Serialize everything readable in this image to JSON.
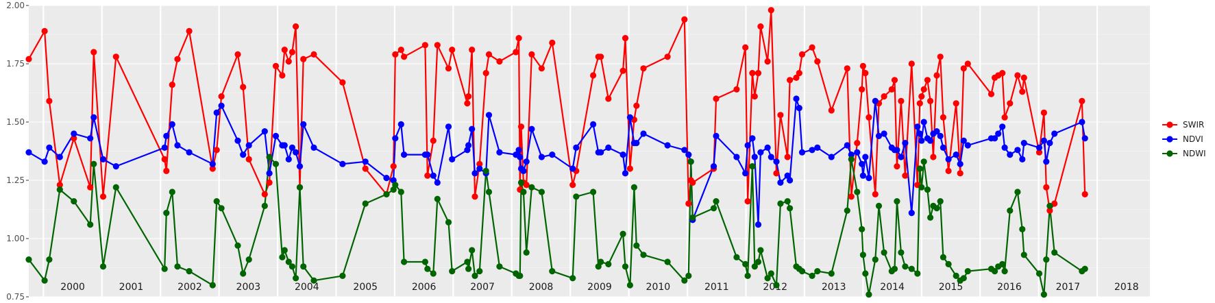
{
  "chart_data": {
    "type": "line",
    "ylim": [
      0.75,
      2.0
    ],
    "y_ticks": [
      "0.75",
      "1.00",
      "1.25",
      "1.50",
      "1.75",
      "2.00"
    ],
    "x_range": [
      1999.75,
      2018.9
    ],
    "year_labels": [
      "2000",
      "2001",
      "2002",
      "2003",
      "2004",
      "2005",
      "2006",
      "2007",
      "2008",
      "2009",
      "2010",
      "2011",
      "2012",
      "2013",
      "2014",
      "2015",
      "2016",
      "2017",
      "2018"
    ],
    "grid": true,
    "legend_position": "right",
    "series": [
      {
        "name": "SWIR",
        "color": "#ff0000",
        "x": [
          1999.75,
          2000.02,
          2000.1,
          2000.28,
          2000.52,
          2000.8,
          2000.86,
          2001.02,
          2001.24,
          2002.07,
          2002.1,
          2002.2,
          2002.29,
          2002.49,
          2002.89,
          2002.96,
          2003.04,
          2003.32,
          2003.41,
          2003.51,
          2003.78,
          2003.86,
          2003.97,
          2004.08,
          2004.12,
          2004.19,
          2004.25,
          2004.31,
          2004.38,
          2004.44,
          2004.62,
          2005.11,
          2005.5,
          2005.86,
          2005.98,
          2006.01,
          2006.11,
          2006.16,
          2006.52,
          2006.56,
          2006.66,
          2006.73,
          2006.92,
          2006.98,
          2007.24,
          2007.26,
          2007.32,
          2007.37,
          2007.45,
          2007.56,
          2007.61,
          2007.79,
          2008.07,
          2008.12,
          2008.14,
          2008.16,
          2008.2,
          2008.25,
          2008.34,
          2008.51,
          2008.69,
          2009.04,
          2009.1,
          2009.39,
          2009.48,
          2009.52,
          2009.65,
          2009.9,
          2009.94,
          2010.02,
          2010.09,
          2010.13,
          2010.25,
          2010.66,
          2010.95,
          2011.02,
          2011.06,
          2011.09,
          2011.45,
          2011.49,
          2011.84,
          2011.99,
          2012.03,
          2012.11,
          2012.15,
          2012.21,
          2012.25,
          2012.37,
          2012.43,
          2012.52,
          2012.59,
          2012.71,
          2012.75,
          2012.86,
          2012.91,
          2012.96,
          2013.13,
          2013.22,
          2013.46,
          2013.73,
          2013.8,
          2013.9,
          2013.98,
          2014.0,
          2014.04,
          2014.1,
          2014.21,
          2014.27,
          2014.36,
          2014.49,
          2014.54,
          2014.58,
          2014.65,
          2014.72,
          2014.83,
          2014.93,
          2014.97,
          2015.0,
          2015.04,
          2015.1,
          2015.15,
          2015.2,
          2015.26,
          2015.32,
          2015.37,
          2015.46,
          2015.59,
          2015.66,
          2015.72,
          2015.79,
          2016.19,
          2016.25,
          2016.31,
          2016.38,
          2016.42,
          2016.51,
          2016.64,
          2016.72,
          2016.75,
          2017.01,
          2017.09,
          2017.13,
          2017.19,
          2017.27,
          2017.74,
          2017.79
        ],
        "values": [
          1.77,
          1.89,
          1.59,
          1.23,
          1.43,
          1.22,
          1.8,
          1.18,
          1.78,
          1.34,
          1.29,
          1.66,
          1.77,
          1.89,
          1.3,
          1.38,
          1.61,
          1.79,
          1.65,
          1.34,
          1.19,
          1.24,
          1.74,
          1.7,
          1.81,
          1.76,
          1.8,
          1.91,
          1.22,
          1.77,
          1.79,
          1.67,
          1.3,
          1.19,
          1.31,
          1.79,
          1.81,
          1.78,
          1.83,
          1.27,
          1.42,
          1.83,
          1.73,
          1.81,
          1.58,
          1.61,
          1.81,
          1.18,
          1.32,
          1.71,
          1.79,
          1.76,
          1.8,
          1.86,
          1.21,
          1.48,
          1.24,
          1.23,
          1.79,
          1.73,
          1.84,
          1.23,
          1.29,
          1.7,
          1.78,
          1.78,
          1.6,
          1.72,
          1.86,
          1.3,
          1.51,
          1.57,
          1.73,
          1.78,
          1.94,
          1.15,
          1.25,
          1.24,
          1.3,
          1.6,
          1.64,
          1.82,
          1.16,
          1.71,
          1.61,
          1.71,
          1.91,
          1.76,
          1.98,
          1.28,
          1.53,
          1.35,
          1.68,
          1.69,
          1.71,
          1.79,
          1.82,
          1.76,
          1.55,
          1.73,
          1.18,
          1.41,
          1.64,
          1.74,
          1.71,
          1.52,
          1.19,
          1.58,
          1.61,
          1.64,
          1.68,
          1.31,
          1.59,
          1.27,
          1.75,
          1.23,
          1.58,
          1.61,
          1.64,
          1.68,
          1.59,
          1.35,
          1.7,
          1.78,
          1.52,
          1.29,
          1.58,
          1.28,
          1.73,
          1.75,
          1.62,
          1.69,
          1.7,
          1.71,
          1.52,
          1.58,
          1.7,
          1.63,
          1.69,
          1.37,
          1.54,
          1.22,
          1.12,
          1.15,
          1.59,
          1.19
        ],
        "note": ""
      },
      {
        "name": "NDVI",
        "color": "#0000ff",
        "x": [
          1999.75,
          2000.02,
          2000.1,
          2000.28,
          2000.52,
          2000.8,
          2000.86,
          2001.02,
          2001.24,
          2002.07,
          2002.1,
          2002.2,
          2002.29,
          2002.49,
          2002.89,
          2002.96,
          2003.04,
          2003.32,
          2003.41,
          2003.51,
          2003.78,
          2003.86,
          2003.97,
          2004.08,
          2004.12,
          2004.19,
          2004.25,
          2004.31,
          2004.38,
          2004.44,
          2004.62,
          2005.11,
          2005.5,
          2005.86,
          2005.98,
          2006.01,
          2006.11,
          2006.16,
          2006.52,
          2006.56,
          2006.66,
          2006.73,
          2006.92,
          2006.98,
          2007.24,
          2007.26,
          2007.32,
          2007.37,
          2007.45,
          2007.56,
          2007.61,
          2007.79,
          2008.07,
          2008.12,
          2008.14,
          2008.16,
          2008.2,
          2008.25,
          2008.34,
          2008.51,
          2008.69,
          2009.04,
          2009.1,
          2009.39,
          2009.48,
          2009.52,
          2009.65,
          2009.9,
          2009.94,
          2010.02,
          2010.09,
          2010.13,
          2010.25,
          2010.66,
          2010.95,
          2011.02,
          2011.06,
          2011.09,
          2011.45,
          2011.49,
          2011.84,
          2011.99,
          2012.03,
          2012.11,
          2012.15,
          2012.21,
          2012.25,
          2012.37,
          2012.43,
          2012.52,
          2012.59,
          2012.71,
          2012.75,
          2012.86,
          2012.91,
          2012.96,
          2013.13,
          2013.22,
          2013.46,
          2013.73,
          2013.8,
          2013.9,
          2013.98,
          2014.0,
          2014.04,
          2014.1,
          2014.21,
          2014.27,
          2014.36,
          2014.49,
          2014.54,
          2014.58,
          2014.65,
          2014.72,
          2014.83,
          2014.93,
          2014.97,
          2015.0,
          2015.04,
          2015.1,
          2015.15,
          2015.2,
          2015.26,
          2015.32,
          2015.37,
          2015.46,
          2015.59,
          2015.66,
          2015.72,
          2015.79,
          2016.19,
          2016.25,
          2016.31,
          2016.38,
          2016.42,
          2016.51,
          2016.64,
          2016.72,
          2016.75,
          2017.01,
          2017.09,
          2017.13,
          2017.19,
          2017.27,
          2017.74,
          2017.79
        ],
        "values": [
          1.37,
          1.33,
          1.39,
          1.35,
          1.45,
          1.43,
          1.52,
          1.34,
          1.31,
          1.39,
          1.44,
          1.49,
          1.4,
          1.37,
          1.32,
          1.54,
          1.57,
          1.42,
          1.36,
          1.4,
          1.46,
          1.28,
          1.44,
          1.4,
          1.4,
          1.34,
          1.39,
          1.37,
          1.31,
          1.49,
          1.39,
          1.32,
          1.33,
          1.26,
          1.25,
          1.43,
          1.49,
          1.36,
          1.36,
          1.36,
          1.27,
          1.24,
          1.48,
          1.34,
          1.38,
          1.4,
          1.47,
          1.28,
          1.3,
          1.28,
          1.53,
          1.37,
          1.36,
          1.38,
          1.35,
          1.3,
          1.29,
          1.33,
          1.47,
          1.35,
          1.36,
          1.3,
          1.39,
          1.49,
          1.37,
          1.37,
          1.39,
          1.36,
          1.28,
          1.52,
          1.41,
          1.41,
          1.45,
          1.4,
          1.38,
          1.36,
          1.33,
          1.08,
          1.31,
          1.44,
          1.35,
          1.28,
          1.4,
          1.43,
          1.35,
          1.06,
          1.37,
          1.39,
          1.35,
          1.33,
          1.24,
          1.27,
          1.25,
          1.6,
          1.56,
          1.37,
          1.38,
          1.39,
          1.35,
          1.4,
          1.36,
          1.37,
          1.32,
          1.27,
          1.35,
          1.26,
          1.59,
          1.44,
          1.45,
          1.39,
          1.38,
          1.38,
          1.35,
          1.41,
          1.11,
          1.48,
          1.45,
          1.42,
          1.5,
          1.43,
          1.42,
          1.45,
          1.46,
          1.44,
          1.39,
          1.34,
          1.36,
          1.32,
          1.42,
          1.4,
          1.43,
          1.43,
          1.45,
          1.48,
          1.39,
          1.36,
          1.38,
          1.34,
          1.41,
          1.39,
          1.42,
          1.33,
          1.41,
          1.45,
          1.5,
          1.43
        ],
        "note": ""
      },
      {
        "name": "NDWI",
        "color": "#006400",
        "x": [
          1999.75,
          2000.02,
          2000.1,
          2000.28,
          2000.52,
          2000.8,
          2000.86,
          2001.02,
          2001.24,
          2002.07,
          2002.1,
          2002.2,
          2002.29,
          2002.49,
          2002.89,
          2002.96,
          2003.04,
          2003.32,
          2003.41,
          2003.51,
          2003.78,
          2003.86,
          2003.97,
          2004.08,
          2004.12,
          2004.19,
          2004.25,
          2004.31,
          2004.38,
          2004.44,
          2004.62,
          2005.11,
          2005.5,
          2005.86,
          2005.98,
          2006.01,
          2006.11,
          2006.16,
          2006.52,
          2006.56,
          2006.66,
          2006.73,
          2006.92,
          2006.98,
          2007.24,
          2007.26,
          2007.32,
          2007.37,
          2007.45,
          2007.56,
          2007.61,
          2007.79,
          2008.07,
          2008.12,
          2008.14,
          2008.16,
          2008.2,
          2008.25,
          2008.34,
          2008.51,
          2008.69,
          2009.04,
          2009.1,
          2009.39,
          2009.48,
          2009.52,
          2009.65,
          2009.9,
          2009.94,
          2010.02,
          2010.09,
          2010.13,
          2010.25,
          2010.66,
          2010.95,
          2011.02,
          2011.06,
          2011.09,
          2011.45,
          2011.49,
          2011.84,
          2011.99,
          2012.03,
          2012.11,
          2012.15,
          2012.21,
          2012.25,
          2012.37,
          2012.43,
          2012.52,
          2012.59,
          2012.71,
          2012.75,
          2012.86,
          2012.91,
          2012.96,
          2013.13,
          2013.22,
          2013.46,
          2013.73,
          2013.8,
          2013.9,
          2013.98,
          2014.0,
          2014.04,
          2014.1,
          2014.21,
          2014.27,
          2014.36,
          2014.49,
          2014.54,
          2014.58,
          2014.65,
          2014.72,
          2014.83,
          2014.93,
          2014.97,
          2015.0,
          2015.04,
          2015.1,
          2015.15,
          2015.2,
          2015.26,
          2015.32,
          2015.37,
          2015.46,
          2015.59,
          2015.66,
          2015.72,
          2015.79,
          2016.19,
          2016.25,
          2016.31,
          2016.38,
          2016.42,
          2016.51,
          2016.64,
          2016.72,
          2016.75,
          2017.01,
          2017.09,
          2017.13,
          2017.19,
          2017.27,
          2017.74,
          2017.79
        ],
        "values": [
          0.91,
          0.82,
          0.91,
          1.21,
          1.16,
          1.06,
          1.32,
          0.88,
          1.22,
          0.87,
          1.11,
          1.2,
          0.88,
          0.86,
          0.8,
          1.16,
          1.13,
          0.97,
          0.85,
          0.91,
          1.14,
          1.35,
          1.32,
          0.92,
          0.95,
          0.9,
          0.88,
          0.83,
          1.22,
          0.88,
          0.82,
          0.84,
          1.15,
          1.19,
          1.21,
          1.23,
          1.2,
          0.9,
          0.9,
          0.87,
          0.85,
          1.17,
          1.07,
          0.86,
          0.9,
          0.87,
          0.95,
          0.84,
          0.86,
          1.29,
          1.2,
          0.88,
          0.85,
          0.84,
          0.84,
          1.24,
          1.2,
          0.94,
          1.22,
          1.2,
          0.86,
          0.83,
          1.18,
          1.2,
          0.88,
          0.9,
          0.89,
          1.02,
          0.88,
          0.8,
          1.22,
          0.97,
          0.93,
          0.9,
          0.82,
          0.84,
          1.33,
          1.09,
          1.13,
          1.16,
          0.92,
          0.89,
          0.84,
          1.31,
          0.88,
          0.9,
          0.95,
          0.83,
          0.85,
          0.8,
          1.15,
          1.16,
          1.13,
          0.88,
          0.87,
          0.86,
          0.84,
          0.86,
          0.85,
          1.12,
          1.34,
          1.2,
          1.04,
          0.93,
          0.85,
          0.76,
          0.91,
          1.14,
          0.94,
          0.86,
          0.87,
          1.16,
          0.94,
          0.88,
          0.87,
          0.85,
          1.3,
          1.22,
          1.33,
          1.21,
          1.09,
          1.14,
          1.13,
          1.16,
          0.92,
          0.89,
          0.84,
          0.82,
          0.83,
          0.86,
          0.87,
          0.86,
          0.88,
          0.89,
          0.86,
          1.12,
          1.2,
          1.04,
          0.93,
          0.85,
          0.76,
          0.91,
          1.14,
          0.94,
          0.86,
          0.87
        ],
        "note": ""
      }
    ]
  }
}
